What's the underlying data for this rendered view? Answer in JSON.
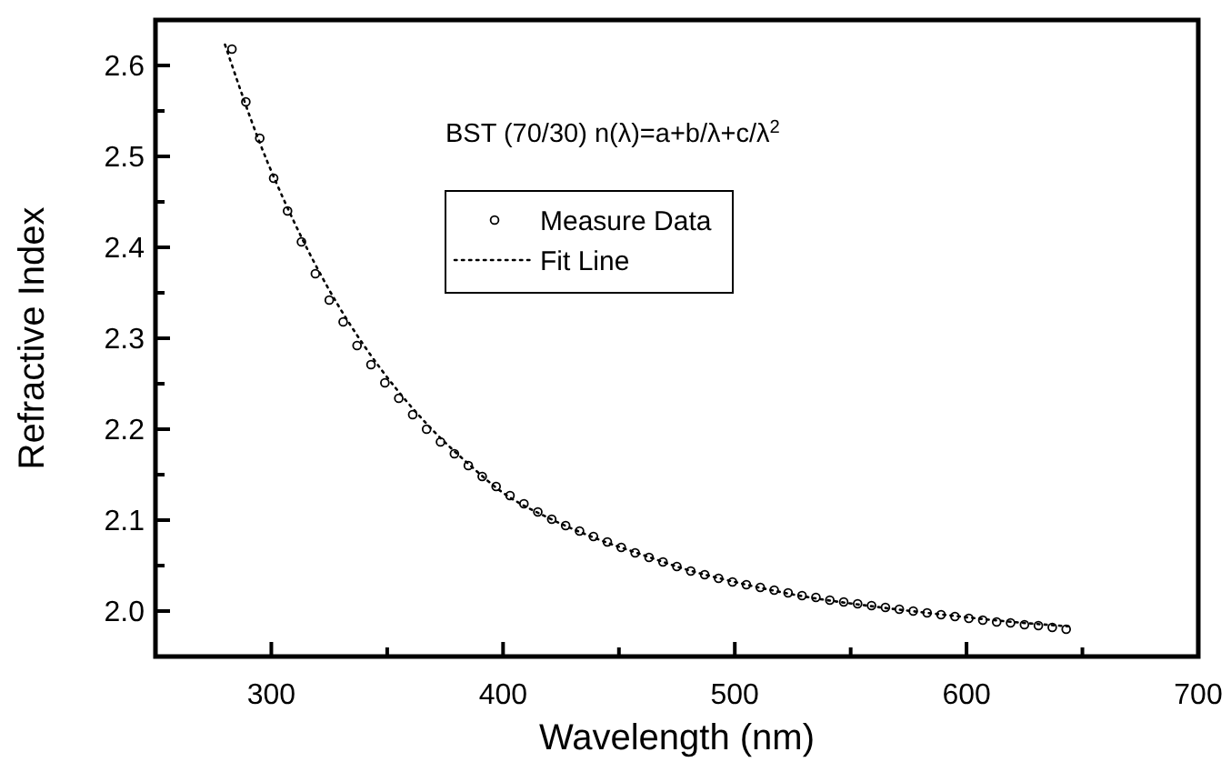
{
  "chart_data": {
    "type": "scatter",
    "xlabel": "Wavelength (nm)",
    "ylabel": "Refractive Index",
    "annotations": [
      "BST (70/30) n(λ)=a+b/λ+c/λ$^{2}$"
    ],
    "xlim": [
      250,
      700
    ],
    "xticks": [
      300,
      {
        "value": 350,
        "label": null
      },
      400,
      {
        "value": 450,
        "label": null
      },
      500,
      {
        "value": 550,
        "label": null
      },
      600,
      {
        "value": 650,
        "label": null
      },
      700
    ],
    "ylim": [
      1.95,
      2.65
    ],
    "yticks": [
      "2.0",
      {
        "value": 2.05,
        "label": null
      },
      {
        "value": 2.1,
        "label": "2.1"
      },
      {
        "value": 2.15,
        "label": null
      },
      {
        "value": 2.2,
        "label": "2.2"
      },
      {
        "value": 2.25,
        "label": null
      },
      {
        "value": 2.3,
        "label": "2.3"
      },
      {
        "value": 2.35,
        "label": null
      },
      {
        "value": 2.4,
        "label": "2.4"
      },
      {
        "value": 2.45,
        "label": null
      },
      {
        "value": 2.5,
        "label": "2.5"
      },
      {
        "value": 2.55,
        "label": null
      },
      {
        "value": 2.6,
        "label": "2.6"
      }
    ],
    "grid": false,
    "legend": "top",
    "series": [
      {
        "name": "Measure Data",
        "color": "#000000",
        "marker": "circle",
        "x": [
          283,
          289,
          295,
          301,
          307,
          313,
          319,
          325,
          331,
          337,
          343,
          349,
          355,
          361,
          367,
          373,
          379,
          385,
          391,
          397,
          403,
          409,
          415,
          421,
          427,
          433,
          439,
          445,
          451,
          457,
          463,
          469,
          475,
          481,
          487,
          493,
          499,
          505,
          511,
          517,
          523,
          529,
          535,
          541,
          547,
          553,
          559,
          565,
          571,
          577,
          583,
          589,
          595,
          601,
          607,
          613,
          619,
          625,
          631,
          637,
          643
        ],
        "values": [
          2.618,
          2.56,
          2.52,
          2.476,
          2.44,
          2.406,
          2.371,
          2.342,
          2.318,
          2.292,
          2.271,
          2.251,
          2.234,
          2.216,
          2.2,
          2.186,
          2.173,
          2.16,
          2.148,
          2.137,
          2.127,
          2.118,
          2.109,
          2.101,
          2.094,
          2.088,
          2.082,
          2.076,
          2.07,
          2.064,
          2.059,
          2.054,
          2.049,
          2.044,
          2.04,
          2.036,
          2.032,
          2.029,
          2.026,
          2.023,
          2.02,
          2.017,
          2.015,
          2.012,
          2.01,
          2.008,
          2.006,
          2.004,
          2.002,
          2.0,
          1.998,
          1.996,
          1.994,
          1.992,
          1.99,
          1.988,
          1.987,
          1.985,
          1.984,
          1.982,
          1.98
        ]
      },
      {
        "name": "Fit Line",
        "type": "line",
        "color": "#000000",
        "marker": "none",
        "line_style": "dotted",
        "x": [
          280,
          295,
          310,
          325,
          340,
          355,
          370,
          385,
          400,
          420,
          440,
          460,
          480,
          500,
          530,
          560,
          590,
          620,
          645
        ],
        "values": [
          2.623,
          2.515,
          2.427,
          2.353,
          2.292,
          2.241,
          2.198,
          2.162,
          2.13,
          2.102,
          2.08,
          2.062,
          2.045,
          2.032,
          2.016,
          2.005,
          1.996,
          1.988,
          1.983
        ]
      }
    ]
  }
}
